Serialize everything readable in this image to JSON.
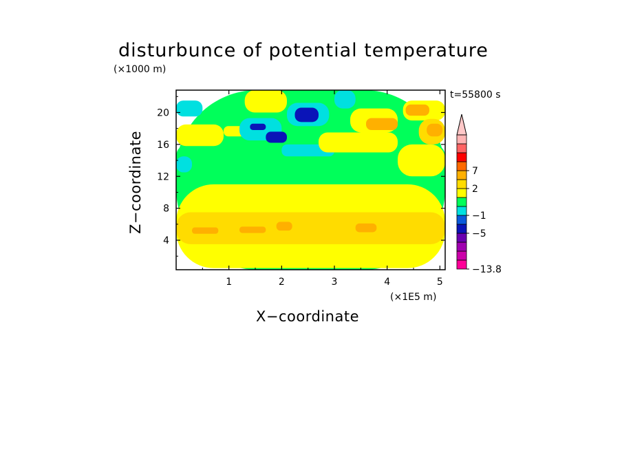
{
  "chart_data": {
    "type": "heatmap",
    "title": "disturbunce of potential temperature",
    "xlabel": "X−coordinate",
    "ylabel": "Z−coordinate",
    "x_unit": "(×1E5 m)",
    "z_unit": "(×1000 m)",
    "time_label": "t=55800 s",
    "xlim": [
      0.0,
      5.1
    ],
    "ylim": [
      0.3,
      22.8
    ],
    "x_ticks": [
      1,
      2,
      3,
      4,
      5
    ],
    "y_ticks": [
      4,
      8,
      12,
      16,
      20
    ],
    "colorbar": {
      "labels": [
        "7",
        "2",
        "−1",
        "−5",
        "−13.8"
      ],
      "colors": [
        "#ff0098",
        "#cc00aa",
        "#a000b0",
        "#6a00b0",
        "#0a14b8",
        "#0a5adc",
        "#00e0e0",
        "#00ff5a",
        "#ffff00",
        "#ffdc00",
        "#ffb000",
        "#ff6a00",
        "#ff0000",
        "#ff6464",
        "#ffb4b4"
      ],
      "extend_color": "#ffc8c8"
    },
    "regions": [
      {
        "x0": 0.0,
        "x1": 5.1,
        "y0": 0.3,
        "y1": 22.8,
        "color": "#00ff5a"
      },
      {
        "x0": 0.0,
        "x1": 5.1,
        "y0": 0.5,
        "y1": 11.0,
        "color": "#ffff00"
      },
      {
        "x0": 0.0,
        "x1": 5.1,
        "y0": 3.5,
        "y1": 7.5,
        "color": "#ffdc00"
      },
      {
        "x0": 0.3,
        "x1": 0.8,
        "y0": 4.8,
        "y1": 5.6,
        "color": "#ffb000"
      },
      {
        "x0": 1.2,
        "x1": 1.7,
        "y0": 4.9,
        "y1": 5.7,
        "color": "#ffb000"
      },
      {
        "x0": 1.9,
        "x1": 2.2,
        "y0": 5.2,
        "y1": 6.3,
        "color": "#ffb000"
      },
      {
        "x0": 3.4,
        "x1": 3.8,
        "y0": 5.0,
        "y1": 6.1,
        "color": "#ffb000"
      },
      {
        "x0": 0.0,
        "x1": 5.1,
        "y0": 12.8,
        "y1": 16.0,
        "color": "#00ff5a"
      },
      {
        "x0": 0.0,
        "x1": 0.5,
        "y0": 19.5,
        "y1": 21.5,
        "color": "#00e0e0"
      },
      {
        "x0": 0.0,
        "x1": 0.3,
        "y0": 12.5,
        "y1": 14.5,
        "color": "#00e0e0"
      },
      {
        "x0": 0.0,
        "x1": 0.9,
        "y0": 15.8,
        "y1": 18.5,
        "color": "#ffff00"
      },
      {
        "x0": 0.9,
        "x1": 1.5,
        "y0": 17.0,
        "y1": 18.3,
        "color": "#ffff00"
      },
      {
        "x0": 1.2,
        "x1": 2.0,
        "y0": 16.5,
        "y1": 19.3,
        "color": "#00e0e0"
      },
      {
        "x0": 1.4,
        "x1": 1.7,
        "y0": 17.8,
        "y1": 18.6,
        "color": "#0a14b8"
      },
      {
        "x0": 1.7,
        "x1": 2.1,
        "y0": 16.2,
        "y1": 17.6,
        "color": "#0a14b8"
      },
      {
        "x0": 2.1,
        "x1": 2.9,
        "y0": 18.3,
        "y1": 21.2,
        "color": "#00e0e0"
      },
      {
        "x0": 2.25,
        "x1": 2.7,
        "y0": 18.8,
        "y1": 20.6,
        "color": "#0a14b8"
      },
      {
        "x0": 2.0,
        "x1": 3.0,
        "y0": 14.5,
        "y1": 16.0,
        "color": "#00e0e0"
      },
      {
        "x0": 2.7,
        "x1": 4.2,
        "y0": 15.0,
        "y1": 17.5,
        "color": "#ffff00"
      },
      {
        "x0": 3.3,
        "x1": 4.2,
        "y0": 17.5,
        "y1": 20.5,
        "color": "#ffff00"
      },
      {
        "x0": 3.6,
        "x1": 4.2,
        "y0": 17.8,
        "y1": 19.3,
        "color": "#ffb000"
      },
      {
        "x0": 4.3,
        "x1": 5.1,
        "y0": 19.0,
        "y1": 21.5,
        "color": "#ffff00"
      },
      {
        "x0": 4.35,
        "x1": 4.8,
        "y0": 19.6,
        "y1": 21.0,
        "color": "#ffb000"
      },
      {
        "x0": 4.6,
        "x1": 5.1,
        "y0": 16.0,
        "y1": 19.2,
        "color": "#ffdc00"
      },
      {
        "x0": 4.75,
        "x1": 5.05,
        "y0": 17.0,
        "y1": 18.6,
        "color": "#ffb000"
      },
      {
        "x0": 4.2,
        "x1": 5.1,
        "y0": 12.0,
        "y1": 16.0,
        "color": "#ffff00"
      },
      {
        "x0": 1.3,
        "x1": 2.1,
        "y0": 20.0,
        "y1": 22.8,
        "color": "#ffff00"
      },
      {
        "x0": 3.0,
        "x1": 3.4,
        "y0": 20.5,
        "y1": 22.8,
        "color": "#00e0e0"
      }
    ]
  }
}
